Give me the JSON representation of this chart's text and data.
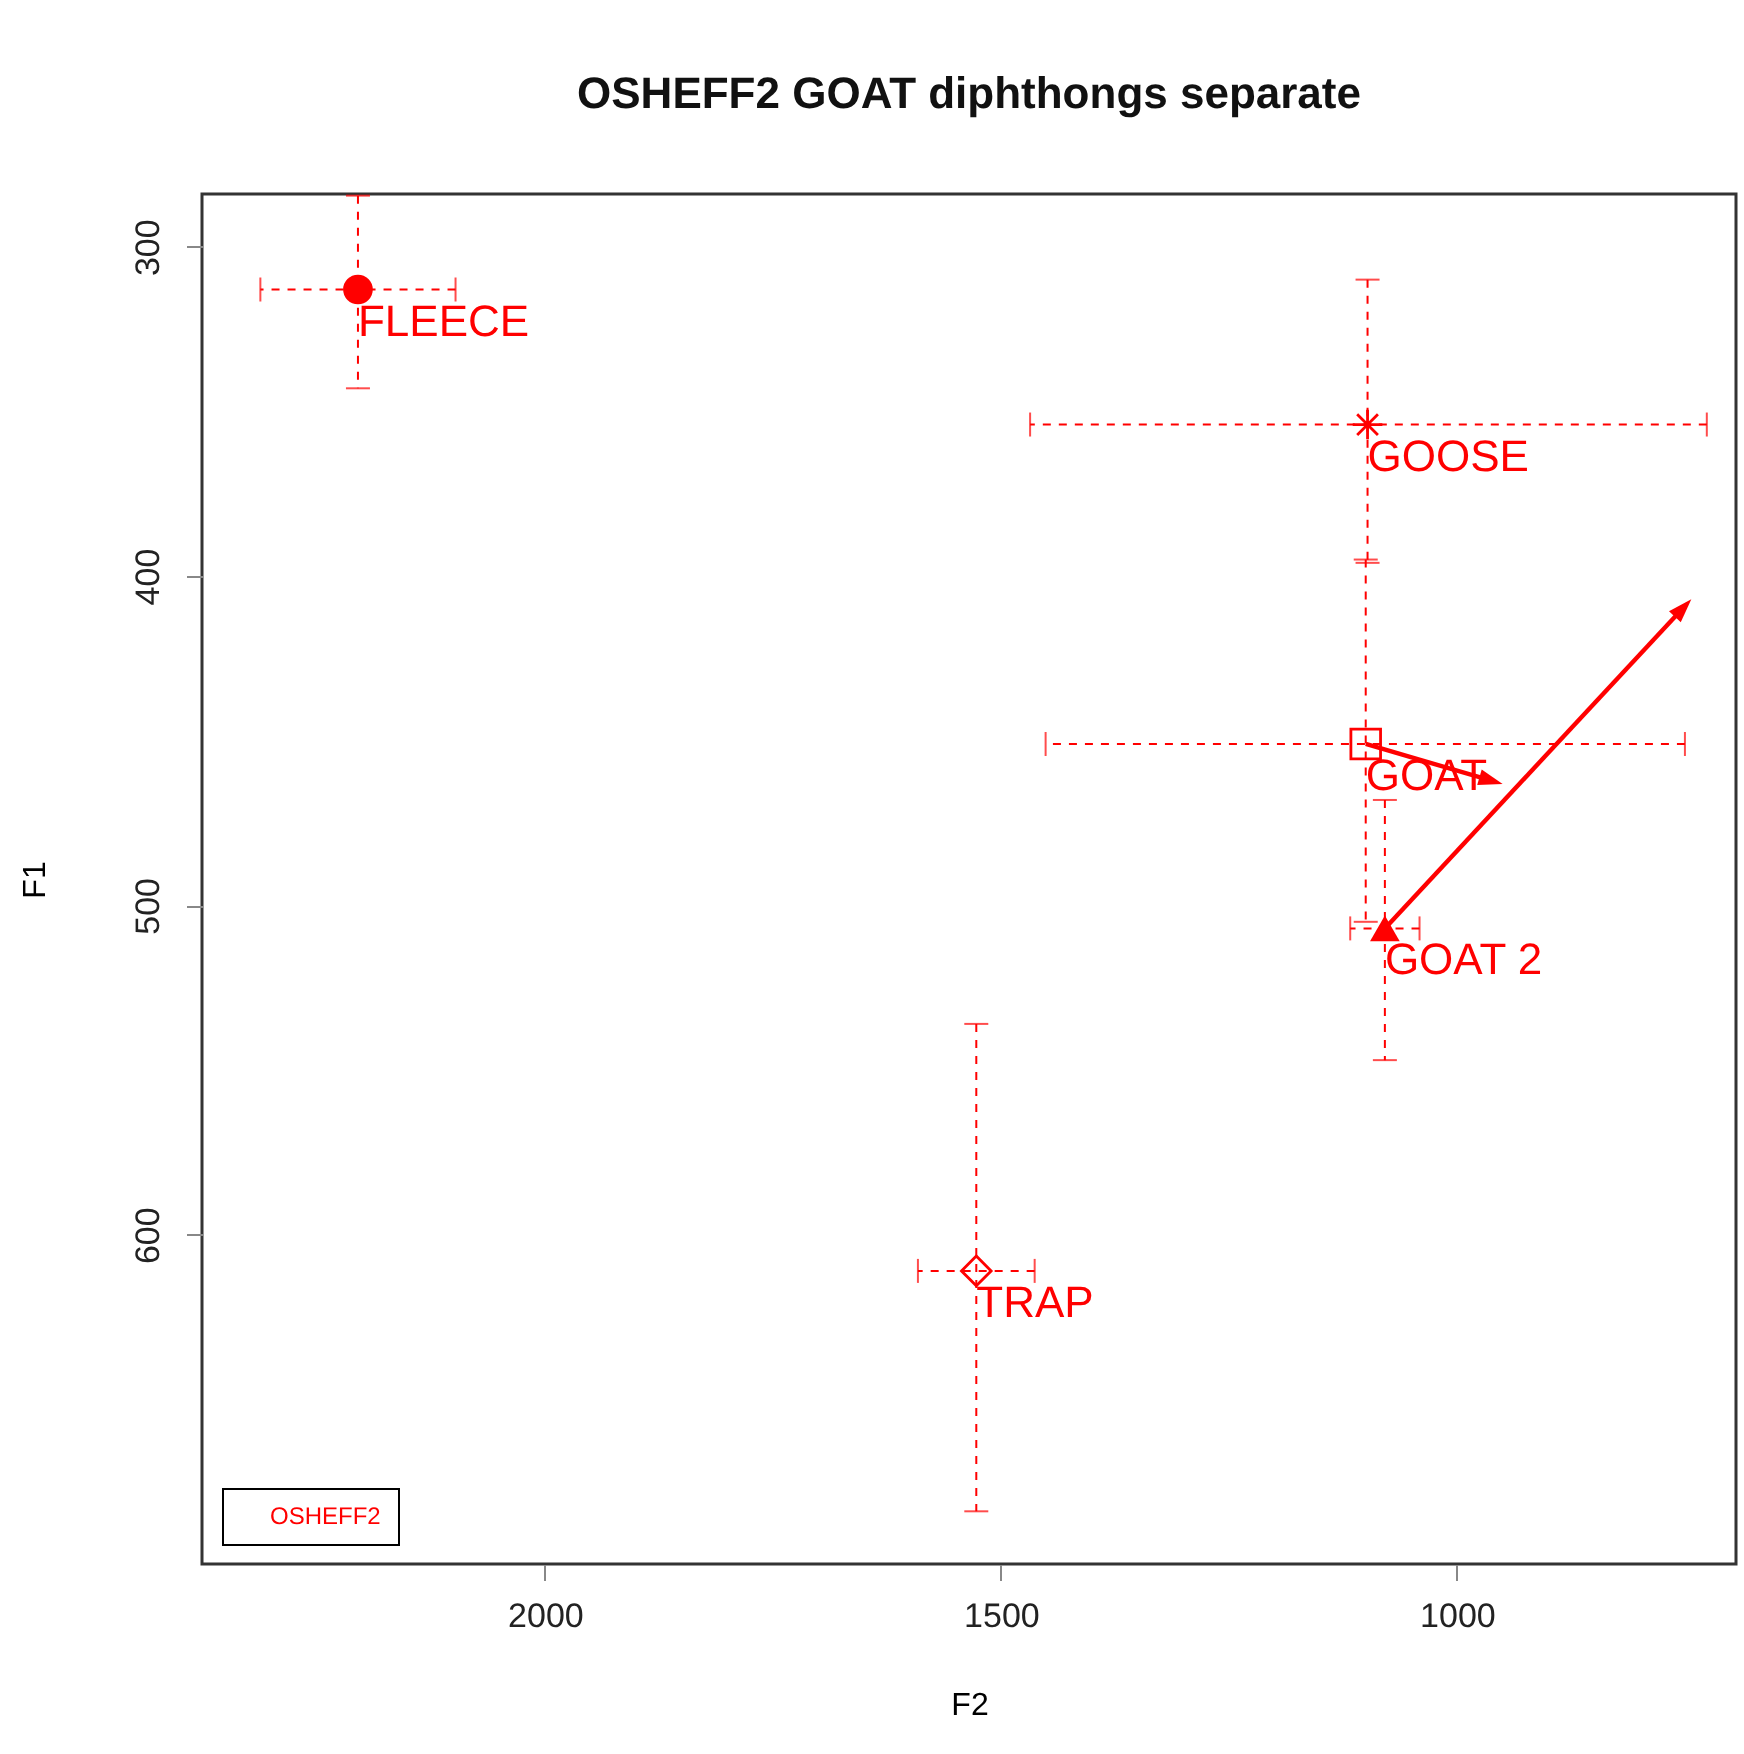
{
  "chart_data": {
    "type": "scatter",
    "title": "OSHEFF2 GOAT diphthongs separate",
    "xlabel": "F2",
    "ylabel": "F1",
    "xlim": [
      2376,
      694
    ],
    "ylim": [
      700,
      284
    ],
    "xticks": [
      2000,
      1500,
      1000
    ],
    "yticks": [
      300,
      400,
      500,
      600
    ],
    "grid": false,
    "legend_title": "OSHEFF2",
    "annotations": [
      {
        "text": "FLEECE",
        "x": 2205,
        "y": 313
      },
      {
        "text": "GOOSE",
        "x": 1098,
        "y": 354
      },
      {
        "text": "GOAT",
        "x": 1100,
        "y": 451
      },
      {
        "text": "GOAT 2",
        "x": 1079,
        "y": 507
      },
      {
        "text": "TRAP",
        "x": 1527,
        "y": 611
      }
    ],
    "series": [
      {
        "color": "#ff0000",
        "marker": "circle",
        "x": [
          2205
        ],
        "values": [
          313
        ],
        "errors": [
          [
            284.5,
            343
          ]
        ],
        "xerrors": [
          [
            2098,
            2312
          ]
        ]
      },
      {
        "color": "#ff0000",
        "marker": "cross",
        "x": [
          1098
        ],
        "values": [
          354
        ],
        "errors": [
          [
            310,
            396
          ]
        ],
        "xerrors": [
          [
            726,
            1468
          ]
        ]
      },
      {
        "color": "#ff0000",
        "marker": "square",
        "x": [
          1100
        ],
        "values": [
          451
        ],
        "errors": [
          [
            395,
            505
          ]
        ],
        "xerrors": [
          [
            750,
            1451
          ]
        ]
      },
      {
        "color": "#ff0000",
        "marker": "triangle",
        "x": [
          1079
        ],
        "values": [
          507
        ],
        "errors": [
          [
            468,
            547
          ]
        ],
        "xerrors": [
          [
            1041,
            1117
          ]
        ]
      },
      {
        "color": "#ff0000",
        "marker": "diamond",
        "x": [
          1527
        ],
        "values": [
          611
        ],
        "errors": [
          [
            536,
            684
          ]
        ],
        "xerrors": [
          [
            1463,
            1591
          ]
        ]
      },
      {
        "type": "line",
        "color": "#ff0000",
        "x": [
          1100,
          964
        ],
        "values": [
          451,
          462
        ]
      },
      {
        "type": "line",
        "color": "#ff0000",
        "x": [
          1079,
          753
        ],
        "values": [
          507,
          410
        ]
      }
    ]
  }
}
